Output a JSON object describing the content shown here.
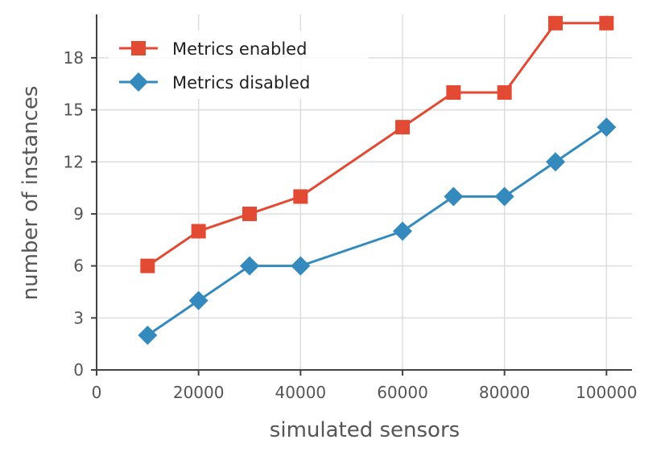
{
  "chart_data": {
    "type": "line",
    "xlabel": "simulated sensors",
    "ylabel": "number of instances",
    "xlim": [
      0,
      105000
    ],
    "ylim": [
      0,
      20.5
    ],
    "x_ticks": [
      0,
      20000,
      40000,
      60000,
      80000,
      100000
    ],
    "x_tick_labels": [
      "0",
      "20000",
      "40000",
      "60000",
      "80000",
      "100000"
    ],
    "y_ticks": [
      0,
      3,
      6,
      9,
      12,
      15,
      18
    ],
    "y_tick_labels": [
      "0",
      "3",
      "6",
      "9",
      "12",
      "15",
      "18"
    ],
    "grid": true,
    "legend_position": "top-left",
    "series": [
      {
        "name": "Metrics enabled",
        "color": "#e24a33",
        "marker": "square",
        "x": [
          10000,
          20000,
          30000,
          40000,
          60000,
          70000,
          80000,
          90000,
          100000
        ],
        "y": [
          6,
          8,
          9,
          10,
          14,
          16,
          16,
          20,
          20
        ]
      },
      {
        "name": "Metrics disabled",
        "color": "#348abd",
        "marker": "diamond",
        "x": [
          10000,
          20000,
          30000,
          40000,
          60000,
          70000,
          80000,
          90000,
          100000
        ],
        "y": [
          2,
          4,
          6,
          6,
          8,
          10,
          10,
          12,
          14
        ]
      }
    ]
  }
}
